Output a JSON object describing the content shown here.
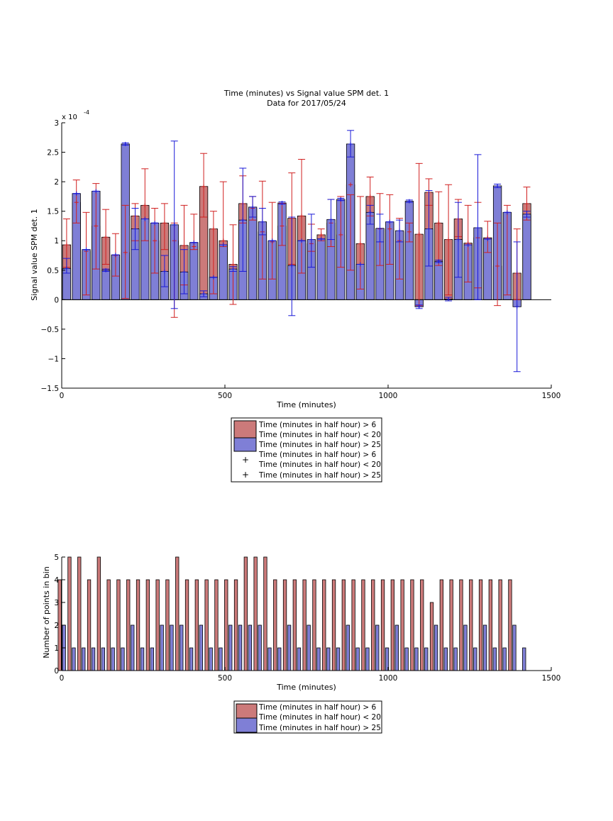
{
  "colors": {
    "red_fill": "#cc7a7a",
    "blue_fill": "#7f7fd6",
    "red_err": "#d02020",
    "blue_err": "#1a1ad8"
  },
  "chart_data": [
    {
      "type": "bar",
      "title": "Time (minutes) vs Signal value SPM det. 1",
      "subtitle": "Data for 2017/05/24",
      "xlabel": "Time (minutes)",
      "ylabel": "Signal value SPM det. 1",
      "y_exponent_label": "x 10",
      "y_exponent_power": "-4",
      "xlim": [
        0,
        1500
      ],
      "ylim": [
        -1.5,
        3
      ],
      "y_scale_note": "values in units of 1e-4",
      "xticks": [
        0,
        500,
        1000,
        1500
      ],
      "yticks": [
        -1.5,
        -1,
        -0.5,
        0,
        0.5,
        1,
        1.5,
        2,
        2.5,
        3
      ],
      "grid": false,
      "legend_position": "below",
      "legend": [
        "Time (minutes in half hour) > 6",
        "Time (minutes in half hour) < 20",
        "Time (minutes in half hour) > 25",
        "Time (minutes in half hour) > 6",
        "Time (minutes in half hour) < 20",
        "Time (minutes in half hour) > 25"
      ],
      "x": [
        15,
        45,
        75,
        105,
        135,
        165,
        195,
        225,
        255,
        285,
        315,
        345,
        375,
        405,
        435,
        465,
        495,
        525,
        555,
        585,
        615,
        645,
        675,
        705,
        735,
        765,
        795,
        825,
        855,
        885,
        915,
        945,
        975,
        1005,
        1035,
        1065,
        1095,
        1125,
        1155,
        1185,
        1215,
        1245,
        1275,
        1305,
        1335,
        1365,
        1395,
        1425
      ],
      "series": [
        {
          "name": "Time (minutes in half hour) > 6",
          "values": [
            0.93,
            1.65,
            0.82,
            1.25,
            1.06,
            0.75,
            0.8,
            1.42,
            1.6,
            1.0,
            1.3,
            1.0,
            0.92,
            0.9,
            1.92,
            1.2,
            1.0,
            0.6,
            1.63,
            1.55,
            1.15,
            0.98,
            1.25,
            1.38,
            1.42,
            0.95,
            1.1,
            1.3,
            1.1,
            1.95,
            0.95,
            1.75,
            1.2,
            1.2,
            1.0,
            1.15,
            1.11,
            1.82,
            1.3,
            1.02,
            1.37,
            0.96,
            1.05,
            1.05,
            0.57,
            1.48,
            0.45,
            1.63
          ],
          "err_low": [
            0.55,
            1.3,
            0.08,
            0.52,
            0.6,
            0.4,
            0.02,
            1.0,
            1.0,
            0.45,
            0.85,
            -0.3,
            0.25,
            0.85,
            1.4,
            0.1,
            0.9,
            -0.08,
            1.3,
            1.35,
            0.35,
            0.35,
            0.92,
            0.6,
            0.45,
            0.82,
            1.0,
            0.9,
            0.55,
            0.5,
            0.18,
            1.42,
            0.58,
            0.6,
            0.35,
            0.98,
            -0.1,
            1.6,
            0.58,
            0.08,
            1.07,
            0.3,
            0.2,
            0.8,
            -0.1,
            0.08,
            0.0,
            1.35
          ],
          "err_high": [
            1.37,
            2.03,
            1.48,
            1.97,
            1.53,
            1.12,
            1.6,
            1.63,
            2.22,
            1.55,
            1.63,
            1.3,
            1.6,
            1.45,
            2.48,
            1.5,
            2.0,
            1.27,
            2.1,
            1.75,
            2.01,
            1.65,
            1.63,
            2.15,
            2.38,
            1.28,
            1.2,
            1.7,
            1.75,
            1.78,
            1.75,
            2.08,
            1.8,
            1.78,
            1.38,
            1.3,
            2.31,
            2.05,
            1.83,
            1.95,
            1.7,
            1.6,
            1.65,
            1.33,
            1.3,
            1.6,
            1.2,
            1.91
          ]
        },
        {
          "name": "Time (minutes in half hour) > 25",
          "values": [
            0.53,
            1.8,
            0.85,
            1.84,
            0.5,
            0.76,
            2.64,
            1.2,
            1.37,
            1.3,
            0.48,
            1.27,
            0.47,
            0.97,
            0.1,
            0.38,
            0.93,
            0.52,
            1.35,
            1.57,
            1.32,
            1.0,
            1.64,
            0.58,
            1.0,
            1.02,
            1.03,
            1.36,
            1.7,
            2.64,
            0.6,
            1.48,
            1.21,
            1.32,
            1.17,
            1.67,
            -0.12,
            1.2,
            0.65,
            0.01,
            1.02,
            0.93,
            1.22,
            1.03,
            1.93,
            1.48,
            -0.12,
            1.45
          ],
          "err_low": [
            0.45,
            1.8,
            0.85,
            1.84,
            0.48,
            0.76,
            2.62,
            0.85,
            1.37,
            1.3,
            0.22,
            -0.15,
            0.1,
            0.97,
            0.05,
            0.38,
            0.93,
            0.48,
            0.48,
            1.4,
            1.1,
            1.0,
            1.62,
            -0.27,
            1.0,
            0.55,
            1.03,
            1.02,
            1.68,
            2.42,
            0.6,
            1.28,
            0.98,
            1.32,
            0.98,
            1.65,
            -0.15,
            0.57,
            0.63,
            -0.02,
            0.38,
            0.93,
            0.0,
            1.03,
            1.9,
            1.48,
            -1.22,
            1.4
          ],
          "err_high": [
            0.7,
            1.8,
            0.85,
            1.84,
            0.52,
            0.76,
            2.66,
            1.55,
            1.37,
            1.3,
            0.75,
            2.69,
            0.85,
            0.97,
            0.15,
            0.38,
            0.93,
            0.56,
            2.23,
            1.75,
            1.55,
            1.0,
            1.66,
            1.4,
            1.0,
            1.45,
            1.03,
            1.7,
            1.72,
            2.87,
            0.6,
            1.6,
            1.45,
            1.32,
            1.35,
            1.69,
            -0.09,
            1.85,
            0.67,
            0.04,
            1.65,
            0.93,
            2.46,
            1.03,
            1.96,
            1.48,
            0.98,
            1.5
          ]
        }
      ]
    },
    {
      "type": "bar",
      "title": "",
      "xlabel": "Time (minutes)",
      "ylabel": "Number of points in bin",
      "xlim": [
        0,
        1500
      ],
      "ylim": [
        0,
        5
      ],
      "xticks": [
        0,
        500,
        1000,
        1500
      ],
      "yticks": [
        0,
        1,
        2,
        3,
        4,
        5
      ],
      "grid": false,
      "legend_position": "below",
      "legend": [
        "Time (minutes in half hour) > 6",
        "Time (minutes in half hour) < 20",
        "Time (minutes in half hour) > 25"
      ],
      "x": [
        15,
        45,
        75,
        105,
        135,
        165,
        195,
        225,
        255,
        285,
        315,
        345,
        375,
        405,
        435,
        465,
        495,
        525,
        555,
        585,
        615,
        645,
        675,
        705,
        735,
        765,
        795,
        825,
        855,
        885,
        915,
        945,
        975,
        1005,
        1035,
        1065,
        1095,
        1125,
        1155,
        1185,
        1215,
        1245,
        1275,
        1305,
        1335,
        1365,
        1395,
        1425
      ],
      "series": [
        {
          "name": "Time (minutes in half hour) > 6",
          "values": [
            4,
            5,
            5,
            4,
            5,
            4,
            4,
            4,
            4,
            4,
            4,
            4,
            5,
            4,
            4,
            4,
            4,
            4,
            4,
            5,
            5,
            5,
            4,
            4,
            4,
            4,
            4,
            4,
            4,
            4,
            4,
            4,
            4,
            4,
            4,
            4,
            4,
            4,
            3,
            4,
            4,
            4,
            4,
            4,
            4,
            4,
            4,
            0
          ]
        },
        {
          "name": "Time (minutes in half hour) > 25",
          "values": [
            2,
            1,
            1,
            1,
            1,
            1,
            1,
            2,
            1,
            1,
            2,
            2,
            2,
            1,
            2,
            1,
            1,
            2,
            2,
            2,
            2,
            1,
            1,
            2,
            1,
            2,
            1,
            1,
            1,
            2,
            1,
            1,
            2,
            1,
            2,
            1,
            1,
            1,
            2,
            1,
            1,
            2,
            1,
            2,
            1,
            1,
            2,
            1
          ]
        }
      ]
    }
  ]
}
